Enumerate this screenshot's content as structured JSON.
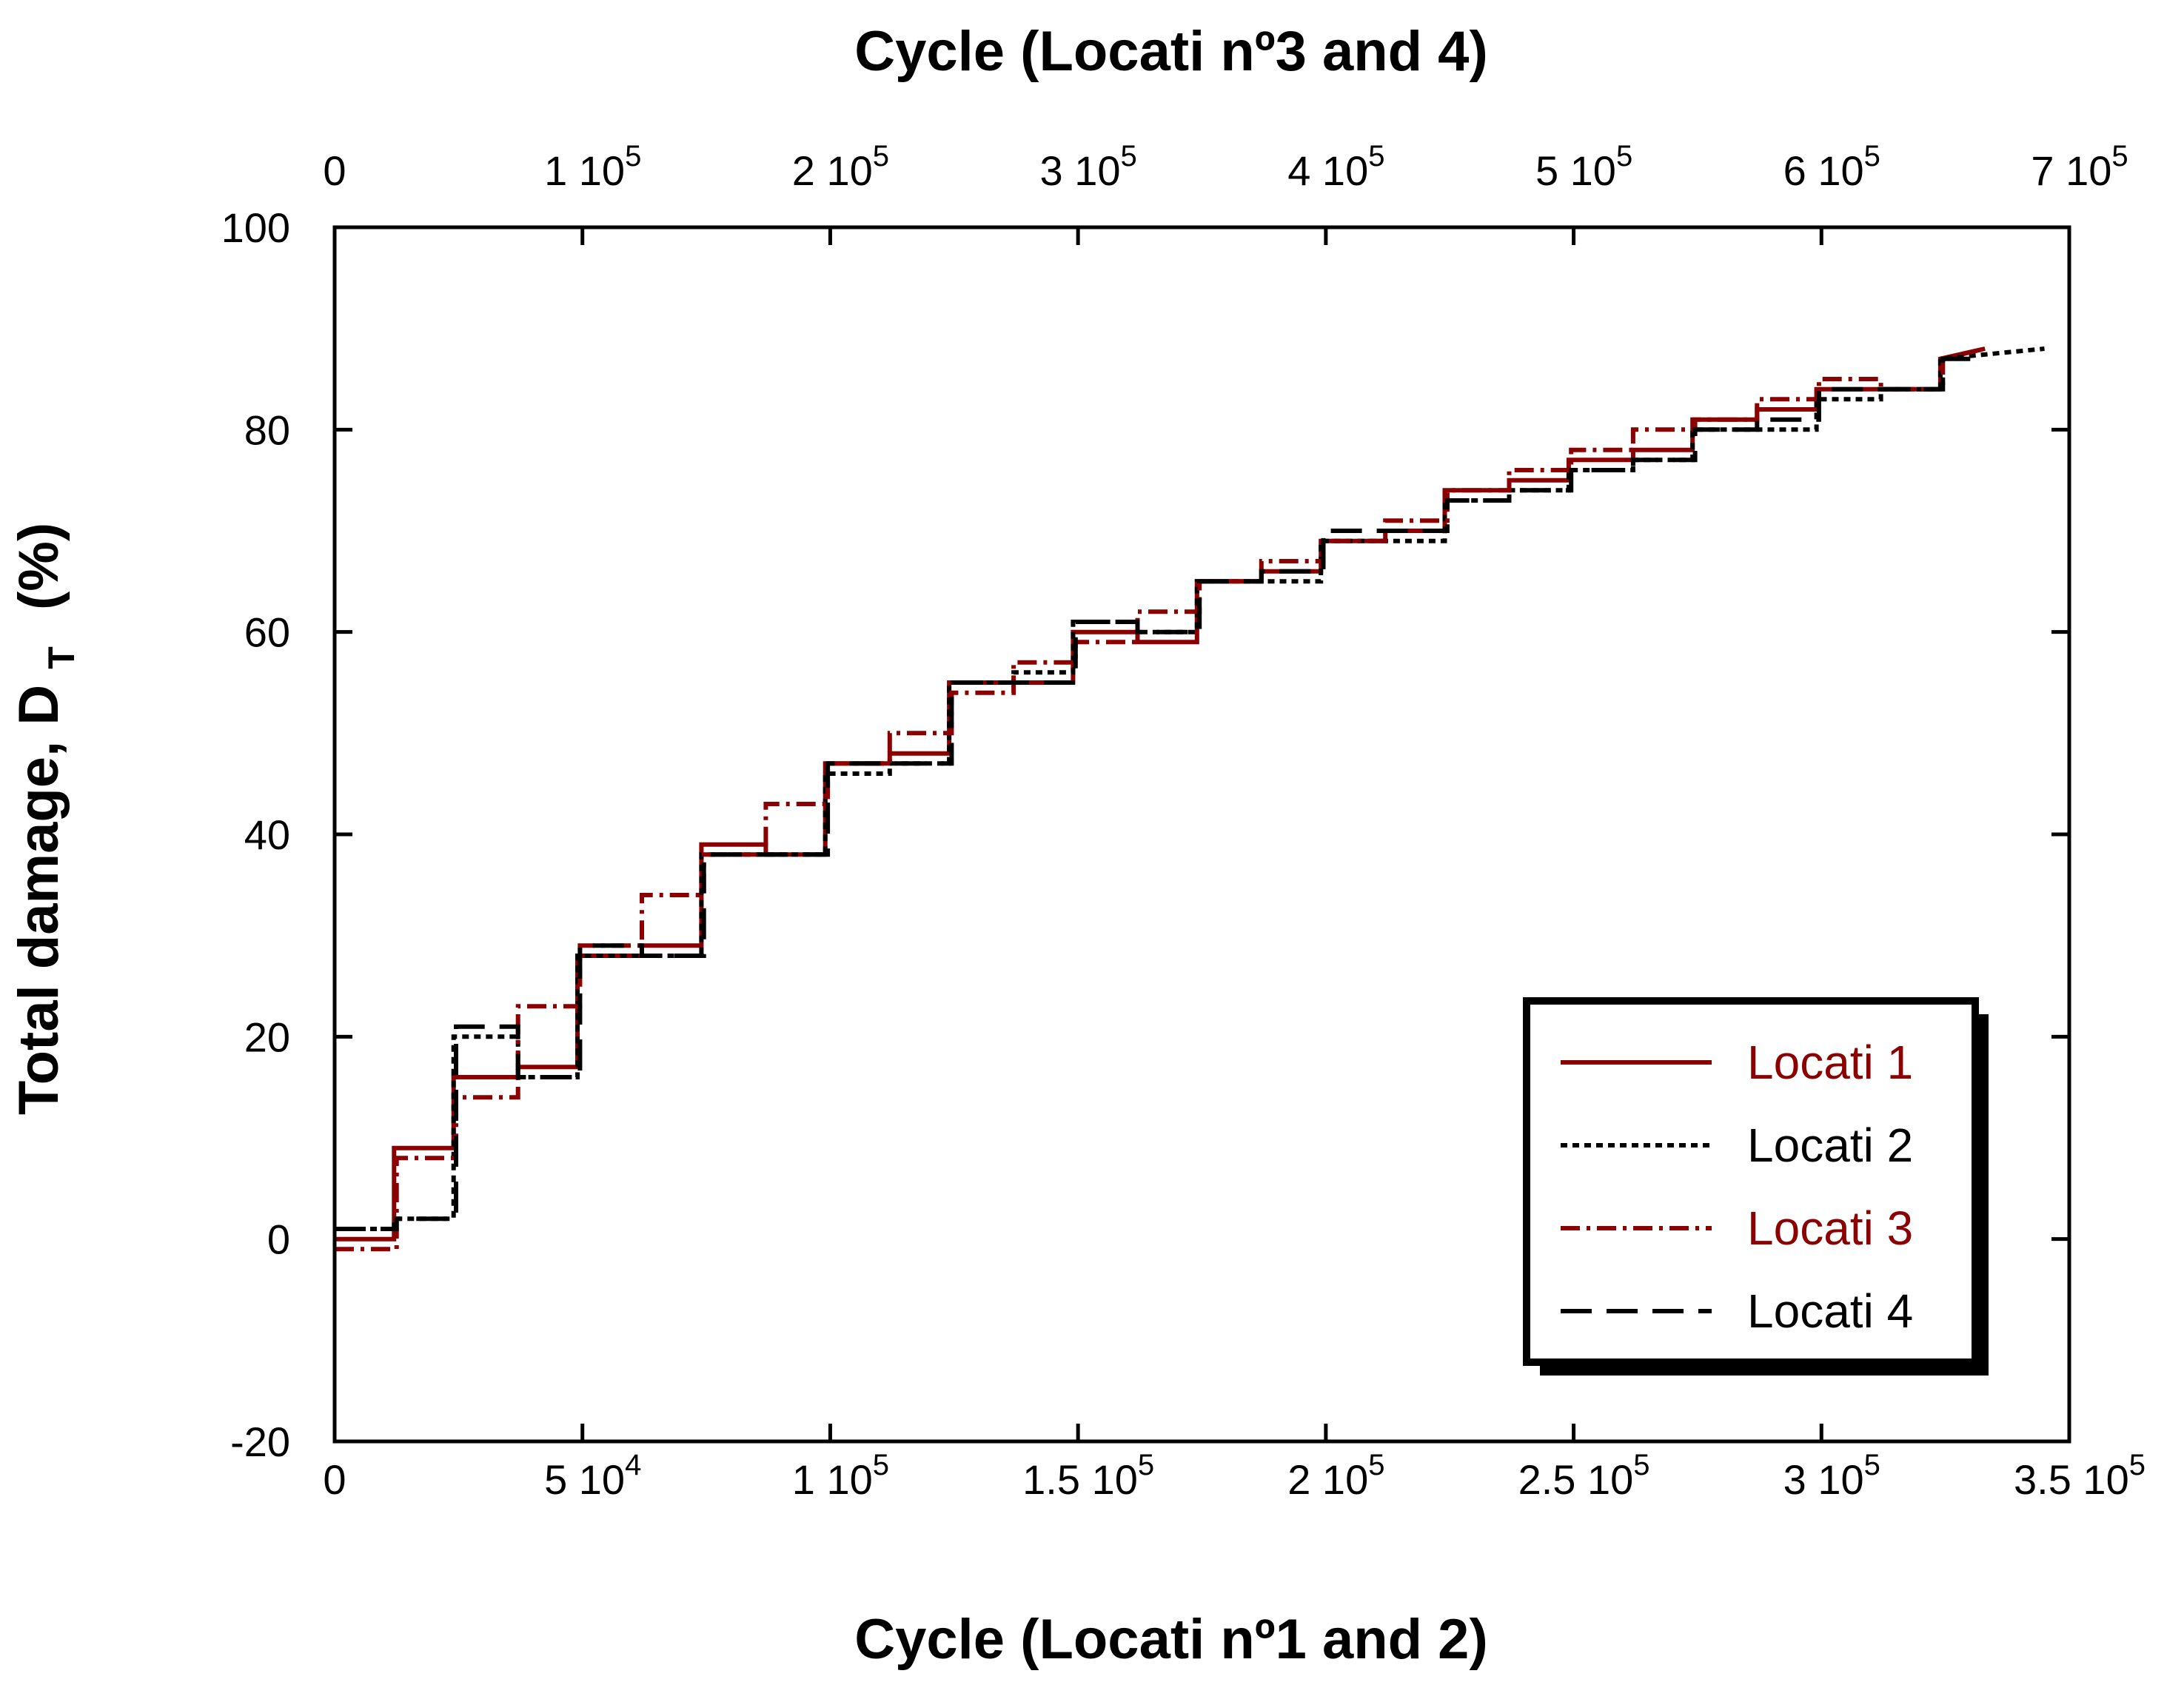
{
  "chart_data": {
    "type": "line",
    "title": "",
    "xlabel": "Cycle (Locati nº1 and 2)",
    "x2label": "Cycle (Locati nº3 and 4)",
    "ylabel": "Total damage, D",
    "ylabel_sub": "T",
    "ylabel_unit": "(%)",
    "xlim": [
      0,
      350000
    ],
    "x2lim": [
      0,
      700000
    ],
    "ylim": [
      -20,
      100
    ],
    "grid": false,
    "legend_position": "bottom-right",
    "x_ticks": [
      {
        "value": 0,
        "mant": "0",
        "exp": ""
      },
      {
        "value": 50000,
        "mant": "5 10",
        "exp": "4"
      },
      {
        "value": 100000,
        "mant": "1 10",
        "exp": "5"
      },
      {
        "value": 150000,
        "mant": "1.5 10",
        "exp": "5"
      },
      {
        "value": 200000,
        "mant": "2 10",
        "exp": "5"
      },
      {
        "value": 250000,
        "mant": "2.5 10",
        "exp": "5"
      },
      {
        "value": 300000,
        "mant": "3 10",
        "exp": "5"
      },
      {
        "value": 350000,
        "mant": "3.5 10",
        "exp": "5"
      }
    ],
    "x2_ticks": [
      {
        "value": 0,
        "mant": "0",
        "exp": ""
      },
      {
        "value": 100000,
        "mant": "1 10",
        "exp": "5"
      },
      {
        "value": 200000,
        "mant": "2 10",
        "exp": "5"
      },
      {
        "value": 300000,
        "mant": "3 10",
        "exp": "5"
      },
      {
        "value": 400000,
        "mant": "4 10",
        "exp": "5"
      },
      {
        "value": 500000,
        "mant": "5 10",
        "exp": "5"
      },
      {
        "value": 600000,
        "mant": "6 10",
        "exp": "5"
      },
      {
        "value": 700000,
        "mant": "7 10",
        "exp": "5"
      }
    ],
    "y_ticks": [
      {
        "value": -20,
        "label": "-20"
      },
      {
        "value": 0,
        "label": "0"
      },
      {
        "value": 20,
        "label": "20"
      },
      {
        "value": 40,
        "label": "40"
      },
      {
        "value": 60,
        "label": "60"
      },
      {
        "value": 80,
        "label": "80"
      },
      {
        "value": 100,
        "label": "100"
      }
    ],
    "series": [
      {
        "name": "Locati 1",
        "axis": "bottom",
        "color": "#8b0000",
        "dash": "",
        "points": [
          [
            0,
            0
          ],
          [
            12000,
            0
          ],
          [
            12000,
            9
          ],
          [
            24000,
            9
          ],
          [
            24000,
            16
          ],
          [
            37000,
            16
          ],
          [
            37000,
            17
          ],
          [
            49000,
            17
          ],
          [
            49000,
            28
          ],
          [
            62000,
            28
          ],
          [
            62000,
            29
          ],
          [
            74000,
            29
          ],
          [
            74000,
            39
          ],
          [
            87000,
            39
          ],
          [
            87000,
            38
          ],
          [
            99000,
            38
          ],
          [
            99000,
            47
          ],
          [
            112000,
            47
          ],
          [
            112000,
            48
          ],
          [
            124000,
            48
          ],
          [
            124000,
            55
          ],
          [
            137000,
            55
          ],
          [
            137000,
            55
          ],
          [
            149000,
            55
          ],
          [
            149000,
            60
          ],
          [
            162000,
            60
          ],
          [
            162000,
            59
          ],
          [
            174000,
            59
          ],
          [
            174000,
            65
          ],
          [
            187000,
            65
          ],
          [
            187000,
            66
          ],
          [
            199000,
            66
          ],
          [
            199000,
            69
          ],
          [
            212000,
            69
          ],
          [
            212000,
            70
          ],
          [
            224000,
            70
          ],
          [
            224000,
            74
          ],
          [
            237000,
            74
          ],
          [
            237000,
            75
          ],
          [
            249000,
            75
          ],
          [
            249000,
            77
          ],
          [
            262000,
            77
          ],
          [
            262000,
            78
          ],
          [
            274000,
            78
          ],
          [
            274000,
            81
          ],
          [
            287000,
            81
          ],
          [
            287000,
            82
          ],
          [
            299000,
            82
          ],
          [
            299000,
            84
          ],
          [
            312000,
            84
          ],
          [
            312000,
            84
          ],
          [
            324000,
            84
          ],
          [
            324000,
            87
          ],
          [
            333000,
            88
          ]
        ]
      },
      {
        "name": "Locati 2",
        "axis": "bottom",
        "color": "#000000",
        "dash": "9,7",
        "points": [
          [
            0,
            1
          ],
          [
            12000,
            1
          ],
          [
            12000,
            2
          ],
          [
            24000,
            2
          ],
          [
            24000,
            20
          ],
          [
            37000,
            20
          ],
          [
            37000,
            16
          ],
          [
            49000,
            16
          ],
          [
            49000,
            28
          ],
          [
            62000,
            28
          ],
          [
            62000,
            28
          ],
          [
            74000,
            28
          ],
          [
            74000,
            38
          ],
          [
            87000,
            38
          ],
          [
            87000,
            38
          ],
          [
            99000,
            38
          ],
          [
            99000,
            46
          ],
          [
            112000,
            46
          ],
          [
            112000,
            47
          ],
          [
            124000,
            47
          ],
          [
            124000,
            55
          ],
          [
            137000,
            55
          ],
          [
            137000,
            56
          ],
          [
            149000,
            56
          ],
          [
            149000,
            61
          ],
          [
            162000,
            61
          ],
          [
            162000,
            60
          ],
          [
            174000,
            60
          ],
          [
            174000,
            65
          ],
          [
            187000,
            65
          ],
          [
            187000,
            65
          ],
          [
            199000,
            65
          ],
          [
            199000,
            69
          ],
          [
            212000,
            69
          ],
          [
            212000,
            69
          ],
          [
            224000,
            69
          ],
          [
            224000,
            73
          ],
          [
            237000,
            73
          ],
          [
            237000,
            74
          ],
          [
            249000,
            74
          ],
          [
            249000,
            76
          ],
          [
            262000,
            76
          ],
          [
            262000,
            77
          ],
          [
            274000,
            77
          ],
          [
            274000,
            80
          ],
          [
            287000,
            80
          ],
          [
            287000,
            80
          ],
          [
            299000,
            80
          ],
          [
            299000,
            83
          ],
          [
            312000,
            83
          ],
          [
            312000,
            84
          ],
          [
            324000,
            84
          ],
          [
            324000,
            87
          ],
          [
            345000,
            88
          ]
        ]
      },
      {
        "name": "Locati 3",
        "axis": "top",
        "color": "#8b0000",
        "dash": "26,9,5,9",
        "points": [
          [
            0,
            -1
          ],
          [
            25000,
            -1
          ],
          [
            25000,
            8
          ],
          [
            49000,
            8
          ],
          [
            49000,
            14
          ],
          [
            74000,
            14
          ],
          [
            74000,
            23
          ],
          [
            99000,
            23
          ],
          [
            99000,
            29
          ],
          [
            124000,
            29
          ],
          [
            124000,
            34
          ],
          [
            149000,
            34
          ],
          [
            149000,
            38
          ],
          [
            174000,
            38
          ],
          [
            174000,
            43
          ],
          [
            199000,
            43
          ],
          [
            199000,
            47
          ],
          [
            224000,
            47
          ],
          [
            224000,
            50
          ],
          [
            249000,
            50
          ],
          [
            249000,
            54
          ],
          [
            274000,
            54
          ],
          [
            274000,
            57
          ],
          [
            299000,
            57
          ],
          [
            299000,
            59
          ],
          [
            324000,
            59
          ],
          [
            324000,
            62
          ],
          [
            349000,
            62
          ],
          [
            349000,
            65
          ],
          [
            374000,
            65
          ],
          [
            374000,
            67
          ],
          [
            399000,
            67
          ],
          [
            399000,
            69
          ],
          [
            424000,
            69
          ],
          [
            424000,
            71
          ],
          [
            449000,
            71
          ],
          [
            449000,
            74
          ],
          [
            474000,
            74
          ],
          [
            474000,
            76
          ],
          [
            499000,
            76
          ],
          [
            499000,
            78
          ],
          [
            524000,
            78
          ],
          [
            524000,
            80
          ],
          [
            549000,
            80
          ],
          [
            549000,
            81
          ],
          [
            574000,
            81
          ],
          [
            574000,
            83
          ],
          [
            599000,
            83
          ],
          [
            599000,
            85
          ],
          [
            624000,
            85
          ],
          [
            624000,
            84
          ],
          [
            649000,
            84
          ],
          [
            649000,
            87
          ],
          [
            666000,
            88
          ]
        ]
      },
      {
        "name": "Locati 4",
        "axis": "top",
        "color": "#000000",
        "dash": "42,20",
        "points": [
          [
            0,
            1
          ],
          [
            25000,
            1
          ],
          [
            25000,
            2
          ],
          [
            49000,
            2
          ],
          [
            49000,
            21
          ],
          [
            74000,
            21
          ],
          [
            74000,
            16
          ],
          [
            99000,
            16
          ],
          [
            99000,
            29
          ],
          [
            124000,
            29
          ],
          [
            124000,
            28
          ],
          [
            149000,
            28
          ],
          [
            149000,
            38
          ],
          [
            174000,
            38
          ],
          [
            174000,
            38
          ],
          [
            199000,
            38
          ],
          [
            199000,
            47
          ],
          [
            224000,
            47
          ],
          [
            224000,
            47
          ],
          [
            249000,
            47
          ],
          [
            249000,
            55
          ],
          [
            274000,
            55
          ],
          [
            274000,
            55
          ],
          [
            299000,
            55
          ],
          [
            299000,
            61
          ],
          [
            324000,
            61
          ],
          [
            324000,
            60
          ],
          [
            349000,
            60
          ],
          [
            349000,
            65
          ],
          [
            374000,
            65
          ],
          [
            374000,
            66
          ],
          [
            399000,
            66
          ],
          [
            399000,
            70
          ],
          [
            424000,
            70
          ],
          [
            424000,
            70
          ],
          [
            449000,
            70
          ],
          [
            449000,
            73
          ],
          [
            474000,
            73
          ],
          [
            474000,
            74
          ],
          [
            499000,
            74
          ],
          [
            499000,
            76
          ],
          [
            524000,
            76
          ],
          [
            524000,
            77
          ],
          [
            549000,
            77
          ],
          [
            549000,
            80
          ],
          [
            574000,
            80
          ],
          [
            574000,
            81
          ],
          [
            599000,
            81
          ],
          [
            599000,
            84
          ],
          [
            624000,
            84
          ],
          [
            624000,
            84
          ],
          [
            649000,
            84
          ],
          [
            649000,
            87
          ],
          [
            662000,
            87
          ]
        ]
      }
    ]
  }
}
